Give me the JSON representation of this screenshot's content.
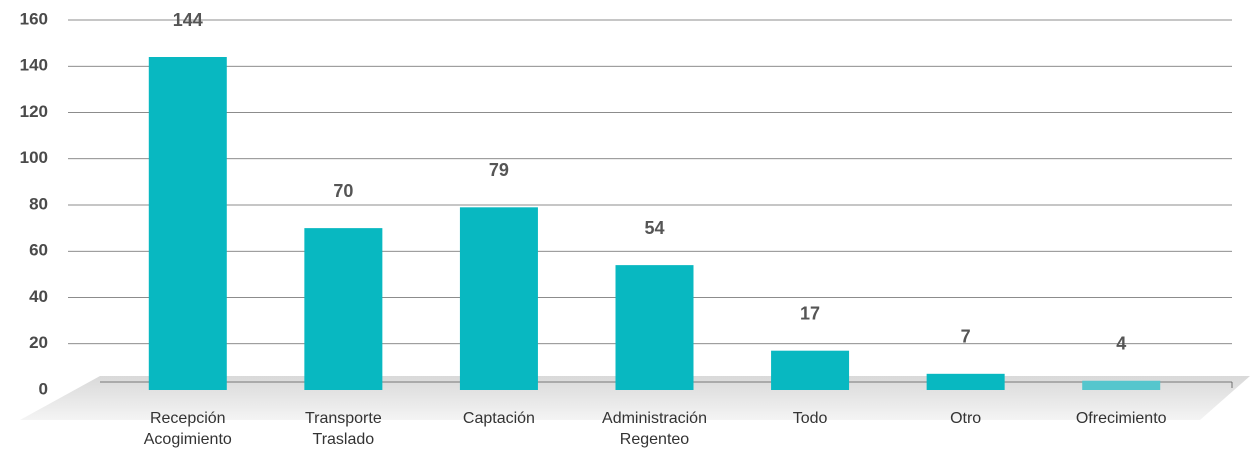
{
  "chart_data": {
    "type": "bar",
    "categories": [
      "Recepción Acogimiento",
      "Transporte Traslado",
      "Captación",
      "Administración Regenteo",
      "Todo",
      "Otro",
      "Ofrecimiento"
    ],
    "values": [
      144,
      70,
      79,
      54,
      17,
      7,
      4
    ],
    "colors": [
      "#08b8c1",
      "#08b8c1",
      "#08b8c1",
      "#08b8c1",
      "#08b8c1",
      "#08b8c1",
      "#55c6cd"
    ],
    "ylim": [
      0,
      160
    ],
    "yticks": [
      0,
      20,
      40,
      60,
      80,
      100,
      120,
      140,
      160
    ],
    "grid": true
  }
}
